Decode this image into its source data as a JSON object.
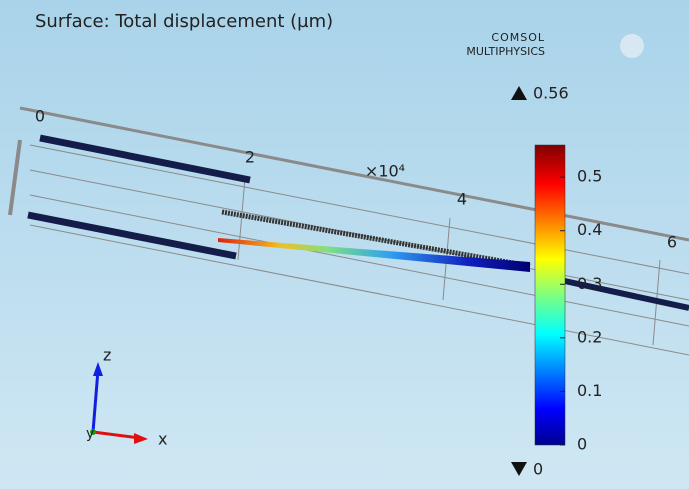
{
  "title": "Surface: Total displacement (µm)",
  "logo": {
    "line1": "COMSOL",
    "line2": "MULTIPHYSICS"
  },
  "colorbar": {
    "max": 0.56,
    "min": 0,
    "ticks": [
      0,
      0.1,
      0.2,
      0.3,
      0.4,
      0.5
    ]
  },
  "axis": {
    "tick_labels": [
      0,
      2,
      4,
      6
    ],
    "scale_label": "×10⁴"
  },
  "triad": {
    "z": "z",
    "x": "x",
    "y": "y"
  }
}
